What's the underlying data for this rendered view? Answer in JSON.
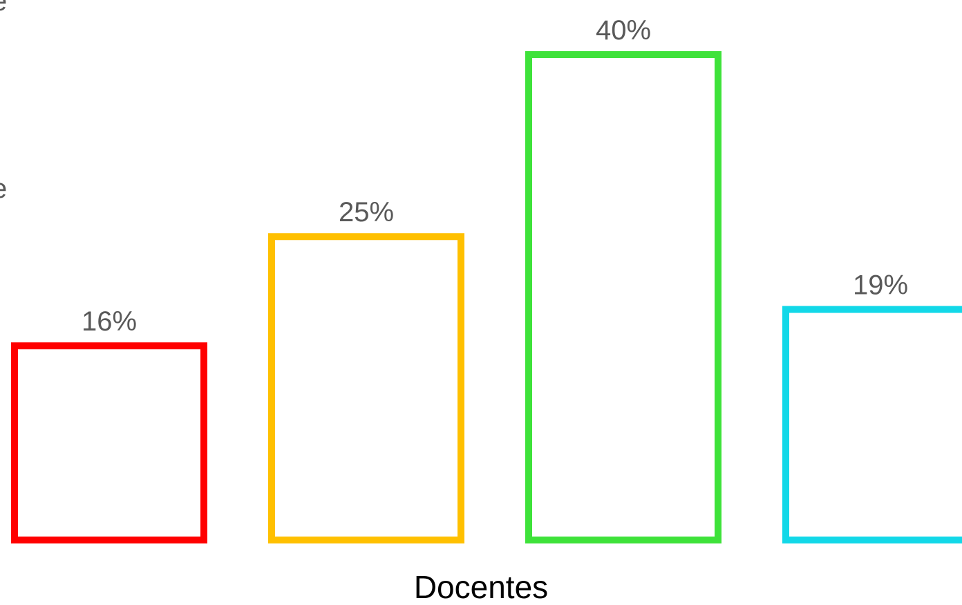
{
  "chart_data": {
    "type": "bar",
    "categories": [
      "",
      "",
      "",
      ""
    ],
    "values": [
      16,
      25,
      40,
      19
    ],
    "value_labels": [
      "16%",
      "25%",
      "40%",
      "19%"
    ],
    "colors": [
      "#ff0000",
      "#ffc000",
      "#3ee23a",
      "#12d8e8"
    ],
    "xlabel": "Docentes",
    "ylabel": "",
    "ylim": [
      0,
      44.5
    ],
    "grid": false,
    "fill": "none",
    "edge_labels": [
      "e",
      "e"
    ]
  }
}
